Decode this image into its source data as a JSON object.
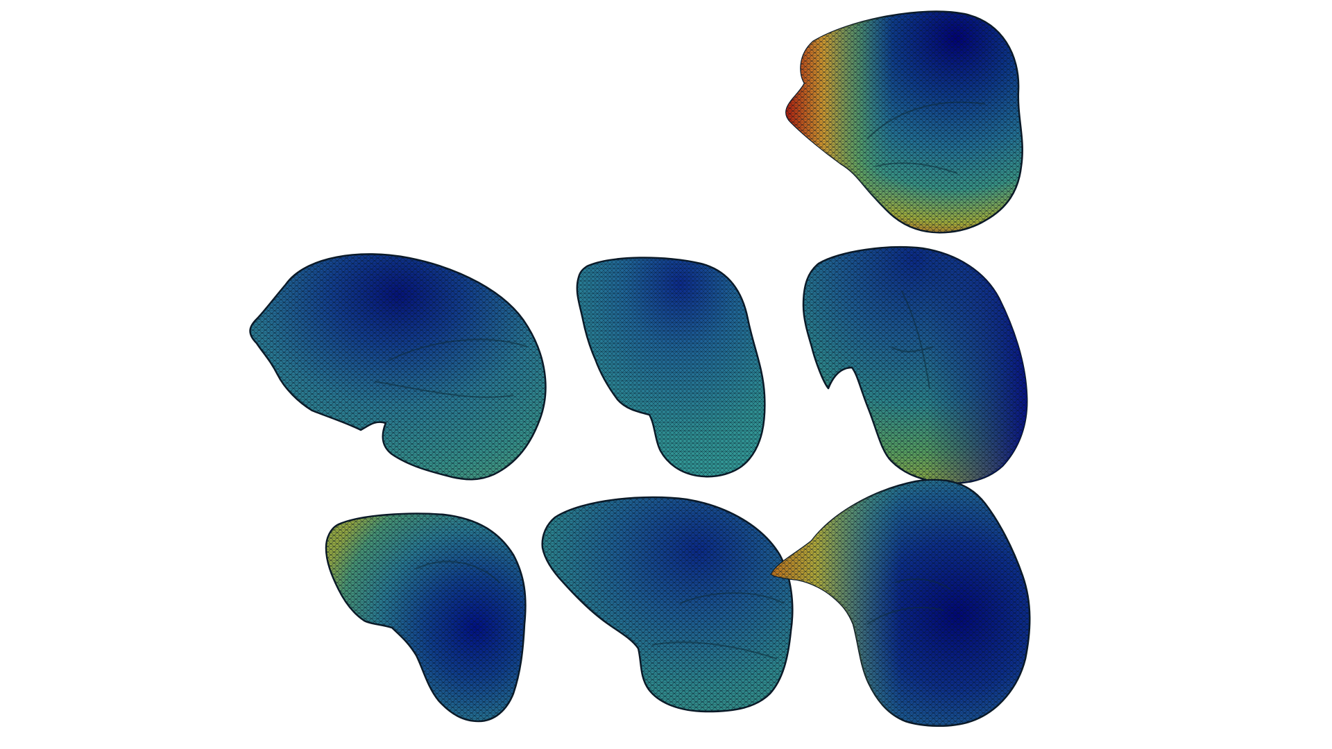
{
  "scene": {
    "background": "#ffffff",
    "colormap": [
      "#00006a",
      "#0a2f8a",
      "#1f5e96",
      "#2f8a8a",
      "#5ea65a",
      "#b0b53a",
      "#d9a030",
      "#c24a1c",
      "#8a0a0a"
    ],
    "mesh_line_color": "#0b1a28"
  },
  "meshes": [
    {
      "name": "mesh-view-1"
    },
    {
      "name": "mesh-view-2"
    },
    {
      "name": "mesh-view-3"
    },
    {
      "name": "mesh-view-4"
    },
    {
      "name": "mesh-view-5"
    },
    {
      "name": "mesh-view-6"
    },
    {
      "name": "mesh-view-7"
    }
  ]
}
